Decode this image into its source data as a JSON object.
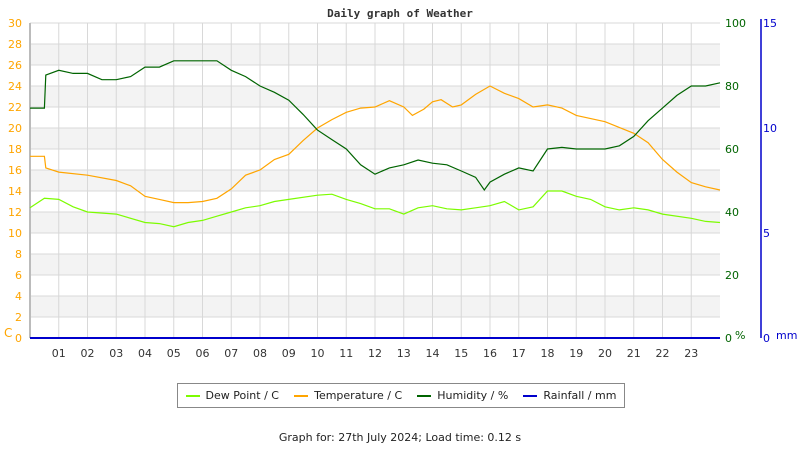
{
  "chart_data": {
    "type": "line",
    "title": "Daily graph of Weather",
    "x_ticks": [
      "01",
      "02",
      "03",
      "04",
      "05",
      "06",
      "07",
      "08",
      "09",
      "10",
      "11",
      "12",
      "13",
      "14",
      "15",
      "16",
      "17",
      "18",
      "19",
      "20",
      "21",
      "22",
      "23"
    ],
    "xlim": [
      0,
      24
    ],
    "left_axis": {
      "unit": "C",
      "ylim": [
        0,
        30
      ],
      "ticks": [
        0,
        2,
        4,
        6,
        8,
        10,
        12,
        14,
        16,
        18,
        20,
        22,
        24,
        26,
        28,
        30
      ],
      "color": "#ffa500"
    },
    "right_axis": {
      "unit": "%",
      "ylim": [
        0,
        100
      ],
      "ticks": [
        0,
        20,
        40,
        60,
        80,
        100
      ],
      "color": "#006400"
    },
    "rain_axis": {
      "unit": "mm",
      "ylim": [
        0,
        15
      ],
      "ticks": [
        0,
        5,
        10,
        15
      ],
      "color": "#0000cc"
    },
    "grid": true,
    "legend_placement": "bottom",
    "series": [
      {
        "name": "Dew Point / C",
        "color": "#7cfc00",
        "axis": "left",
        "x": [
          0,
          0.5,
          1,
          1.5,
          2,
          3,
          4,
          4.5,
          5,
          5.5,
          6,
          6.5,
          7,
          7.5,
          8,
          8.5,
          9,
          10,
          10.5,
          11,
          11.5,
          12,
          12.5,
          13,
          13.5,
          14,
          14.5,
          15,
          15.5,
          16,
          16.5,
          17,
          17.5,
          18,
          18.5,
          19,
          19.5,
          20,
          20.5,
          21,
          21.5,
          22,
          23,
          23.5,
          24
        ],
        "y": [
          12.4,
          13.3,
          13.2,
          12.5,
          12.0,
          11.8,
          11.0,
          10.9,
          10.6,
          11.0,
          11.2,
          11.6,
          12.0,
          12.4,
          12.6,
          13.0,
          13.2,
          13.6,
          13.7,
          13.2,
          12.8,
          12.3,
          12.3,
          11.8,
          12.4,
          12.6,
          12.3,
          12.2,
          12.4,
          12.6,
          13.0,
          12.2,
          12.5,
          14.0,
          14.0,
          13.5,
          13.2,
          12.5,
          12.2,
          12.4,
          12.2,
          11.8,
          11.4,
          11.1,
          11.0
        ]
      },
      {
        "name": "Temperature / C",
        "color": "#ffa500",
        "axis": "left",
        "x": [
          0,
          0.5,
          0.55,
          1,
          2,
          3,
          3.5,
          4,
          4.5,
          5,
          5.5,
          6,
          6.5,
          7,
          7.5,
          8,
          8.5,
          9,
          9.5,
          10,
          10.5,
          11,
          11.5,
          12,
          12.5,
          13,
          13.3,
          13.7,
          14,
          14.3,
          14.7,
          15,
          15.5,
          16,
          16.5,
          17,
          17.5,
          18,
          18.5,
          19,
          20,
          21,
          21.5,
          22,
          22.5,
          23,
          23.5,
          24
        ],
        "y": [
          17.3,
          17.3,
          16.2,
          15.8,
          15.5,
          15.0,
          14.5,
          13.5,
          13.2,
          12.9,
          12.9,
          13.0,
          13.3,
          14.2,
          15.5,
          16.0,
          17.0,
          17.5,
          18.8,
          20.0,
          20.8,
          21.5,
          21.9,
          22.0,
          22.6,
          22.0,
          21.2,
          21.8,
          22.5,
          22.7,
          22.0,
          22.2,
          23.2,
          24.0,
          23.3,
          22.8,
          22.0,
          22.2,
          21.9,
          21.2,
          20.6,
          19.5,
          18.6,
          17.0,
          15.8,
          14.8,
          14.4,
          14.1
        ]
      },
      {
        "name": "Humidity / %",
        "color": "#006400",
        "axis": "right",
        "x": [
          0,
          0.5,
          0.55,
          1,
          1.5,
          2,
          2.5,
          3,
          3.5,
          4,
          4.5,
          5,
          6,
          6.5,
          7,
          7.5,
          8,
          8.5,
          9,
          9.5,
          10,
          10.5,
          11,
          11.5,
          12,
          12.5,
          13,
          13.5,
          14,
          14.5,
          15,
          15.5,
          15.8,
          16,
          16.5,
          17,
          17.5,
          18,
          18.5,
          19,
          19.5,
          20,
          20.5,
          21,
          21.5,
          22,
          22.5,
          23,
          23.5,
          24
        ],
        "y": [
          73,
          73,
          83.5,
          85,
          84,
          84,
          82,
          82,
          83,
          86,
          86,
          88,
          88,
          88,
          85,
          83,
          80,
          78,
          75.5,
          71,
          66,
          63,
          60,
          55,
          52,
          54,
          55,
          56.5,
          55.5,
          55,
          53,
          51,
          47,
          49.5,
          52,
          54,
          53,
          60,
          60.5,
          60,
          60,
          60,
          61,
          64,
          69,
          73,
          77,
          80,
          80,
          81
        ]
      },
      {
        "name": "Rainfall / mm",
        "color": "#0000cc",
        "axis": "rain",
        "x": [
          0,
          24
        ],
        "y": [
          0,
          0
        ]
      }
    ]
  },
  "footer": "Graph for: 27th July 2024; Load time: 0.12 s"
}
